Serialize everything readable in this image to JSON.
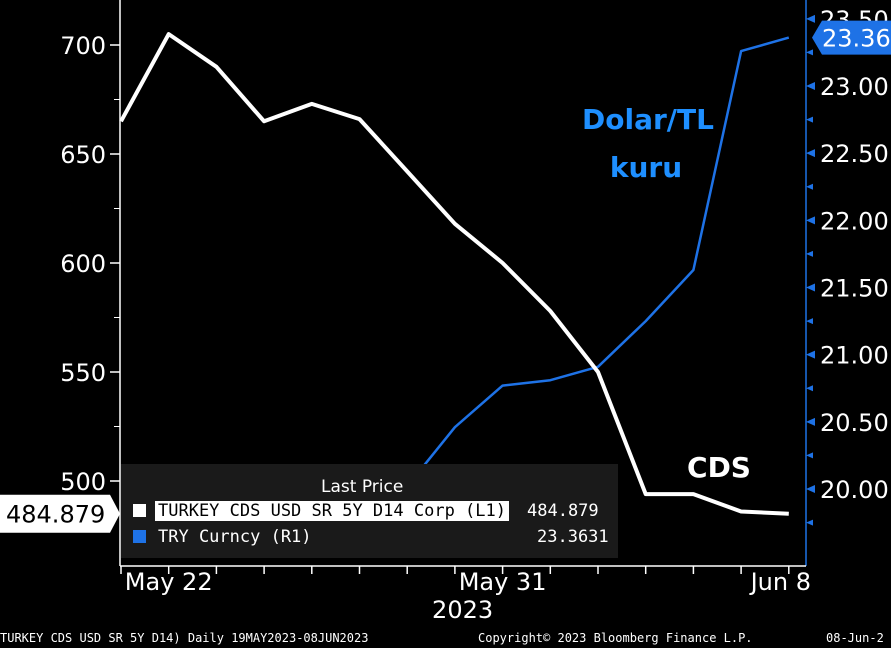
{
  "chart_data": {
    "type": "line",
    "x": [
      "May 19",
      "May 22",
      "May 23",
      "May 24",
      "May 25",
      "May 26",
      "May 29",
      "May 30",
      "May 31",
      "Jun 1",
      "Jun 2",
      "Jun 5",
      "Jun 6",
      "Jun 7",
      "Jun 8"
    ],
    "x_tick_labels": [
      "May 22",
      "May 31",
      "Jun 8"
    ],
    "x_year_label": "2023",
    "left_axis": {
      "ylim": [
        475,
        720
      ],
      "ticks": [
        500,
        550,
        600,
        650,
        700
      ]
    },
    "right_axis": {
      "ylim": [
        19.5,
        23.6
      ],
      "ticks": [
        "20.00",
        "20.50",
        "21.00",
        "21.50",
        "22.00",
        "22.50",
        "23.00",
        "23.50"
      ]
    },
    "series": [
      {
        "name": "TURKEY CDS USD SR 5Y D14 Corp (L1)",
        "axis": "left",
        "color": "#ffffff",
        "values": [
          665,
          705,
          690,
          665,
          673,
          666,
          642,
          618,
          600,
          578,
          550,
          494,
          494,
          486,
          485
        ],
        "last_label": "484.879"
      },
      {
        "name": "TRY Curncy (R1)",
        "axis": "right",
        "color": "#1e72e6",
        "values": [
          19.75,
          19.76,
          19.77,
          19.8,
          19.84,
          19.85,
          20.02,
          20.46,
          20.77,
          20.81,
          20.91,
          21.25,
          21.63,
          23.26,
          23.36
        ],
        "last_label": "23.36"
      }
    ],
    "annotations": [
      {
        "text": "Dolar/TL",
        "color": "#1e8fff"
      },
      {
        "text": "kuru",
        "color": "#1e8fff"
      },
      {
        "text": "CDS",
        "color": "#ffffff"
      }
    ],
    "legend": {
      "header": "Last Price",
      "rows": [
        {
          "label": "TURKEY CDS USD SR 5Y D14 Corp  (L1)",
          "value": "484.879",
          "color": "#ffffff"
        },
        {
          "label": "TRY Curncy  (R1)",
          "value": "23.3631",
          "color": "#1e72e6"
        }
      ]
    }
  },
  "footer": {
    "left": "TURKEY CDS USD SR 5Y D14)  Daily 19MAY2023-08JUN2023",
    "center": "Copyright© 2023 Bloomberg Finance L.P.",
    "right": "08-Jun-2"
  }
}
